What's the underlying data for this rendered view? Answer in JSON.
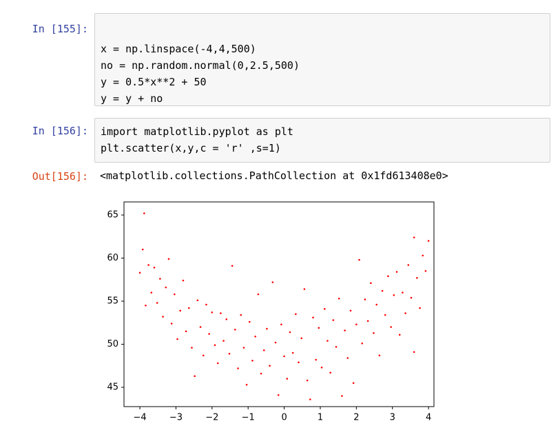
{
  "cells": [
    {
      "prompt": "In [155]:",
      "code": [
        "x = np.linspace(-4,4,500)",
        "no = np.random.normal(0,2.5,500)",
        "y = 0.5*x**2 + 50",
        "y = y + no"
      ]
    },
    {
      "prompt": "In [156]:",
      "code": [
        "import matplotlib.pyplot as plt",
        "plt.scatter(x,y,c = 'r' ,s=1)"
      ]
    }
  ],
  "output": {
    "prompt": "Out[156]:",
    "text": "<matplotlib.collections.PathCollection at 0x1fd613408e0>"
  },
  "chart_data": {
    "type": "scatter",
    "color": "#ff0000",
    "x": [
      -4.0,
      -3.92,
      -3.88,
      -3.84,
      -3.76,
      -3.68,
      -3.6,
      -3.52,
      -3.44,
      -3.36,
      -3.28,
      -3.2,
      -3.12,
      -3.04,
      -2.96,
      -2.88,
      -2.8,
      -2.72,
      -2.64,
      -2.56,
      -2.48,
      -2.4,
      -2.32,
      -2.24,
      -2.16,
      -2.08,
      -2.0,
      -1.92,
      -1.84,
      -1.76,
      -1.68,
      -1.6,
      -1.52,
      -1.44,
      -1.36,
      -1.28,
      -1.2,
      -1.12,
      -1.04,
      -0.96,
      -0.88,
      -0.8,
      -0.72,
      -0.64,
      -0.56,
      -0.48,
      -0.4,
      -0.32,
      -0.24,
      -0.16,
      -0.08,
      0.0,
      0.08,
      0.16,
      0.24,
      0.32,
      0.4,
      0.48,
      0.56,
      0.64,
      0.72,
      0.8,
      0.88,
      0.96,
      1.04,
      1.12,
      1.2,
      1.28,
      1.36,
      1.44,
      1.52,
      1.6,
      1.68,
      1.76,
      1.84,
      1.92,
      2.0,
      2.08,
      2.16,
      2.24,
      2.32,
      2.4,
      2.48,
      2.56,
      2.64,
      2.72,
      2.8,
      2.88,
      2.96,
      3.04,
      3.12,
      3.2,
      3.28,
      3.36,
      3.44,
      3.52,
      3.6,
      3.6,
      3.68,
      3.76,
      3.84,
      3.92,
      4.0
    ],
    "values": [
      58.3,
      61.0,
      65.2,
      54.5,
      59.2,
      56.0,
      58.9,
      54.8,
      57.6,
      53.2,
      56.6,
      59.9,
      52.4,
      55.8,
      50.6,
      53.9,
      57.4,
      51.5,
      54.2,
      49.6,
      46.3,
      55.1,
      52.0,
      48.7,
      54.6,
      51.2,
      53.7,
      49.9,
      47.8,
      53.6,
      50.4,
      52.9,
      48.9,
      59.1,
      51.7,
      47.2,
      53.4,
      49.6,
      45.3,
      52.6,
      48.1,
      50.9,
      55.8,
      46.6,
      49.3,
      51.8,
      47.5,
      57.2,
      50.2,
      44.1,
      52.3,
      48.6,
      46.0,
      51.4,
      49.0,
      53.5,
      47.9,
      50.7,
      56.4,
      45.8,
      43.6,
      53.1,
      48.2,
      51.9,
      47.3,
      54.1,
      50.4,
      46.7,
      52.8,
      49.7,
      55.3,
      44.0,
      51.6,
      48.4,
      53.9,
      45.5,
      52.3,
      59.8,
      50.1,
      55.2,
      52.7,
      57.1,
      51.3,
      54.6,
      48.7,
      56.2,
      53.4,
      57.9,
      52.0,
      55.7,
      58.4,
      51.1,
      56.0,
      53.6,
      59.2,
      55.4,
      49.1,
      62.4,
      57.7,
      54.2,
      60.3,
      58.5,
      62.0
    ],
    "xlim": [
      -4.44,
      4.15
    ],
    "ylim": [
      42.76,
      66.52
    ],
    "xticks": [
      {
        "value": -4,
        "label": "−4"
      },
      {
        "value": -3,
        "label": "−3"
      },
      {
        "value": -2,
        "label": "−2"
      },
      {
        "value": -1,
        "label": "−1"
      },
      0,
      1,
      2,
      3,
      4
    ],
    "yticks": [
      45,
      50,
      55,
      60,
      65
    ]
  }
}
